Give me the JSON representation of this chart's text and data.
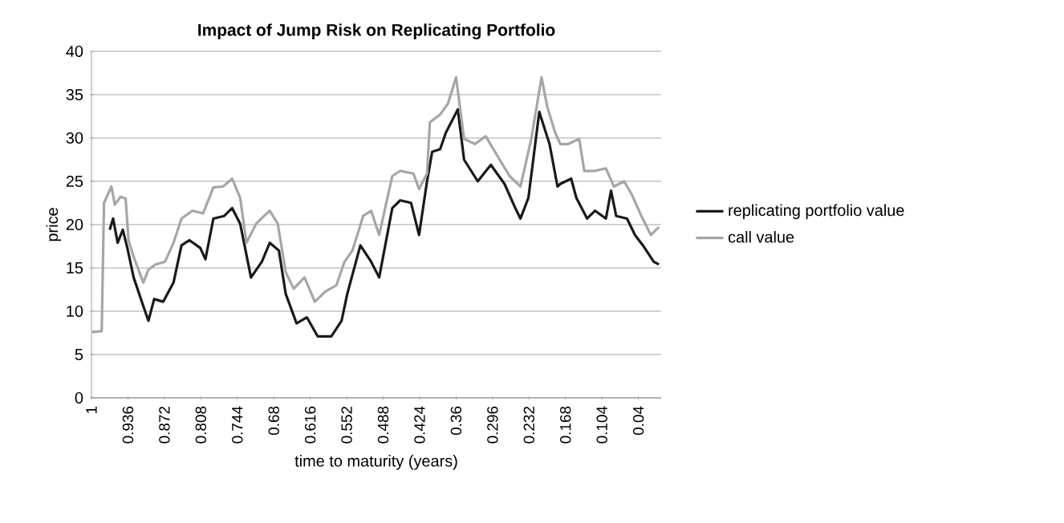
{
  "chart_data": {
    "type": "line",
    "title": "Impact of Jump Risk on Replicating Portfolio",
    "xlabel": "time to maturity (years)",
    "ylabel": "price",
    "xlim": [
      1,
      0
    ],
    "ylim": [
      0,
      40
    ],
    "yticks": [
      0,
      5,
      10,
      15,
      20,
      25,
      30,
      35,
      40
    ],
    "xticks": [
      1,
      0.936,
      0.872,
      0.808,
      0.744,
      0.68,
      0.616,
      0.552,
      0.488,
      0.424,
      0.36,
      0.296,
      0.232,
      0.168,
      0.104,
      0.04
    ],
    "grid": "y",
    "legend": "right",
    "series": [
      {
        "name": "replicating portfolio value",
        "color": "#1a1a1a",
        "x": [
          0.968,
          0.962,
          0.954,
          0.945,
          0.937,
          0.926,
          0.907,
          0.9,
          0.89,
          0.874,
          0.856,
          0.842,
          0.828,
          0.809,
          0.8,
          0.786,
          0.767,
          0.753,
          0.739,
          0.72,
          0.701,
          0.687,
          0.671,
          0.659,
          0.64,
          0.622,
          0.603,
          0.579,
          0.561,
          0.551,
          0.528,
          0.509,
          0.495,
          0.472,
          0.458,
          0.439,
          0.425,
          0.411,
          0.402,
          0.388,
          0.378,
          0.357,
          0.346,
          0.322,
          0.299,
          0.275,
          0.256,
          0.247,
          0.233,
          0.214,
          0.196,
          0.182,
          0.177,
          0.158,
          0.149,
          0.13,
          0.116,
          0.097,
          0.088,
          0.079,
          0.06,
          0.046,
          0.032,
          0.013,
          0.004
        ],
        "values": [
          19.4,
          20.7,
          17.9,
          19.4,
          17.3,
          13.9,
          10.2,
          8.9,
          11.4,
          11.1,
          13.3,
          17.6,
          18.2,
          17.3,
          16,
          20.7,
          21,
          21.9,
          20.1,
          13.9,
          15.7,
          17.9,
          17,
          12,
          8.6,
          9.3,
          7.1,
          7.1,
          8.9,
          12,
          17.6,
          15.7,
          13.9,
          21.9,
          22.8,
          22.5,
          18.8,
          25,
          28.4,
          28.7,
          30.6,
          33.3,
          27.5,
          25,
          26.9,
          24.7,
          21.9,
          20.7,
          23.1,
          33,
          29.3,
          24.4,
          24.7,
          25.3,
          23.1,
          20.7,
          21.6,
          20.7,
          23.9,
          21,
          20.7,
          18.8,
          17.6,
          15.7,
          15.4
        ]
      },
      {
        "name": "call value",
        "color": "#a6a6a6",
        "x": [
          0.999,
          0.982,
          0.978,
          0.965,
          0.959,
          0.949,
          0.94,
          0.935,
          0.926,
          0.909,
          0.9,
          0.888,
          0.871,
          0.856,
          0.842,
          0.823,
          0.804,
          0.786,
          0.769,
          0.753,
          0.739,
          0.728,
          0.711,
          0.697,
          0.687,
          0.673,
          0.659,
          0.645,
          0.626,
          0.608,
          0.589,
          0.57,
          0.556,
          0.542,
          0.523,
          0.509,
          0.495,
          0.472,
          0.458,
          0.435,
          0.425,
          0.411,
          0.406,
          0.388,
          0.374,
          0.36,
          0.346,
          0.327,
          0.308,
          0.289,
          0.266,
          0.247,
          0.228,
          0.21,
          0.2,
          0.186,
          0.177,
          0.163,
          0.144,
          0.135,
          0.116,
          0.097,
          0.083,
          0.065,
          0.051,
          0.037,
          0.018,
          0.004
        ],
        "values": [
          7.6,
          7.7,
          22.5,
          24.4,
          22.3,
          23.2,
          23,
          18.2,
          16.3,
          13.3,
          14.8,
          15.4,
          15.7,
          17.9,
          20.7,
          21.6,
          21.3,
          24.3,
          24.4,
          25.3,
          23.1,
          17.9,
          20.1,
          21,
          21.6,
          20.1,
          14.5,
          12.6,
          13.9,
          11.1,
          12.3,
          13,
          15.7,
          17,
          21,
          21.6,
          18.8,
          25.6,
          26.2,
          25.9,
          24.1,
          25.9,
          31.8,
          32.7,
          34,
          37,
          29.9,
          29.3,
          30.2,
          28.1,
          25.6,
          24.4,
          29.9,
          37,
          33.6,
          30.6,
          29.3,
          29.3,
          29.9,
          26.2,
          26.2,
          26.5,
          24.4,
          25,
          23.4,
          21.3,
          18.8,
          19.7
        ]
      }
    ]
  }
}
